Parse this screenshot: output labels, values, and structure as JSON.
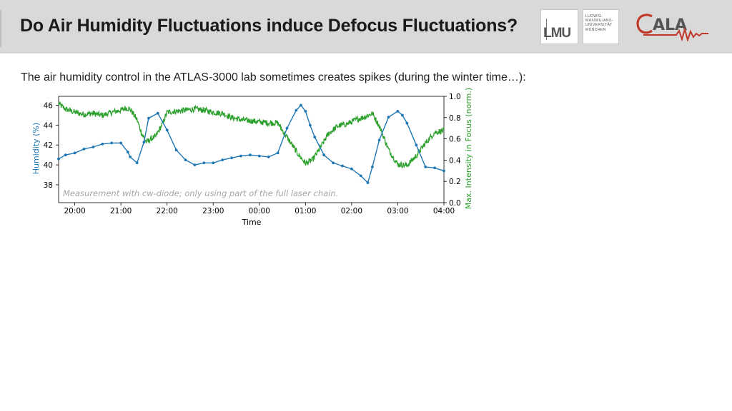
{
  "slide": {
    "title": "Do Air Humidity Fluctuations induce Defocus Fluctuations?",
    "intro": "The air humidity control in the ATLAS-3000 lab sometimes creates spikes (during the winter time…):"
  },
  "logos": {
    "lmu_word": "LMU",
    "lmu_small": "LUDWIG-\nMAXIMILIANS-\nUNIVERSITÄT\nMÜNCHEN",
    "cala_word": "ALA"
  },
  "colors": {
    "humidity": "#1f77b4",
    "focus": "#2ca02c",
    "header_bg": "#d9d9d9",
    "cala_red": "#c0392b"
  },
  "chart_data": {
    "type": "line",
    "xlabel": "Time",
    "ylabel_left": "Humidity (%)",
    "ylabel_right": "Max. Intensity in Focus (norm.)",
    "annotation": "Measurement with cw-diode; only using part of the full laser chain.",
    "x_ticks": [
      "20:00",
      "21:00",
      "22:00",
      "23:00",
      "00:00",
      "01:00",
      "02:00",
      "03:00",
      "04:00"
    ],
    "y_left_ticks": [
      38,
      40,
      42,
      44,
      46
    ],
    "y_right_ticks": [
      "0.0",
      "0.2",
      "0.4",
      "0.6",
      "0.8",
      "1.0"
    ],
    "xlim_hours": [
      19.65,
      28.0
    ],
    "ylim_left": [
      36.2,
      46.9
    ],
    "ylim_right": [
      0.0,
      1.0
    ],
    "grid": false,
    "series": [
      {
        "axis": "left",
        "color": "#1f77b4",
        "marker": "dot",
        "x": [
          19.65,
          19.8,
          20.0,
          20.2,
          20.4,
          20.6,
          20.8,
          21.0,
          21.15,
          21.2,
          21.35,
          21.5,
          21.6,
          21.8,
          22.0,
          22.2,
          22.4,
          22.6,
          22.8,
          23.0,
          23.2,
          23.4,
          23.6,
          23.8,
          24.0,
          24.2,
          24.4,
          24.6,
          24.8,
          24.9,
          25.0,
          25.1,
          25.2,
          25.4,
          25.6,
          25.8,
          26.0,
          26.2,
          26.35,
          26.45,
          26.6,
          26.8,
          27.0,
          27.1,
          27.2,
          27.4,
          27.6,
          27.8,
          28.0
        ],
        "y": [
          40.6,
          41.0,
          41.2,
          41.6,
          41.8,
          42.1,
          42.2,
          42.2,
          41.3,
          40.8,
          40.2,
          42.3,
          44.7,
          45.2,
          43.5,
          41.5,
          40.5,
          40.0,
          40.2,
          40.2,
          40.5,
          40.7,
          40.9,
          41.0,
          40.9,
          40.8,
          41.2,
          43.7,
          45.5,
          46.0,
          45.4,
          44.0,
          42.8,
          41.0,
          40.2,
          39.9,
          39.6,
          38.9,
          38.2,
          39.8,
          42.5,
          44.8,
          45.4,
          45.0,
          44.2,
          42.0,
          39.8,
          39.7,
          39.4
        ]
      },
      {
        "axis": "right",
        "color": "#2ca02c",
        "marker": "none",
        "x": [
          19.65,
          19.8,
          20.0,
          20.2,
          20.4,
          20.6,
          20.8,
          21.0,
          21.1,
          21.2,
          21.35,
          21.45,
          21.55,
          21.65,
          21.75,
          21.9,
          22.0,
          22.2,
          22.4,
          22.6,
          22.8,
          23.0,
          23.2,
          23.4,
          23.6,
          23.8,
          24.0,
          24.2,
          24.4,
          24.5,
          24.7,
          24.85,
          25.0,
          25.15,
          25.3,
          25.5,
          25.7,
          25.9,
          26.1,
          26.3,
          26.45,
          26.6,
          26.8,
          27.0,
          27.2,
          27.4,
          27.6,
          27.8,
          28.0
        ],
        "y": [
          0.93,
          0.88,
          0.85,
          0.83,
          0.84,
          0.82,
          0.85,
          0.87,
          0.89,
          0.88,
          0.78,
          0.65,
          0.57,
          0.6,
          0.62,
          0.74,
          0.85,
          0.86,
          0.87,
          0.88,
          0.87,
          0.85,
          0.84,
          0.8,
          0.78,
          0.77,
          0.76,
          0.75,
          0.75,
          0.68,
          0.55,
          0.45,
          0.37,
          0.4,
          0.5,
          0.65,
          0.72,
          0.74,
          0.78,
          0.81,
          0.84,
          0.72,
          0.5,
          0.36,
          0.35,
          0.44,
          0.56,
          0.66,
          0.68
        ]
      }
    ]
  }
}
